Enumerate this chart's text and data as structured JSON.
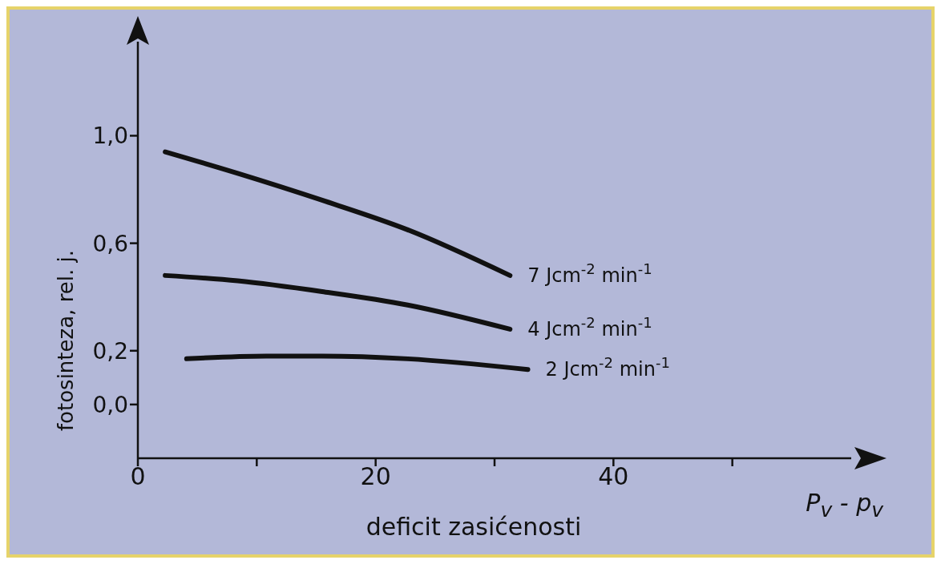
{
  "chart_data": {
    "type": "line",
    "xlabel": "deficit zasićenosti",
    "ylabel": "fotosinteza, rel. j.",
    "annotations": [
      "P$_{v}$ - p$_{v}$"
    ],
    "xlim": [
      0,
      60
    ],
    "ylim": [
      -0.2,
      1.35
    ],
    "xticks": [
      0,
      {
        "value": 10,
        "label": null
      },
      20,
      {
        "value": 30,
        "label": null
      },
      40,
      {
        "value": 50,
        "label": null
      }
    ],
    "yticks": [
      {
        "value": 0,
        "label": "0,0"
      },
      {
        "value": 0.2,
        "label": "0,2"
      },
      {
        "value": 0.6,
        "label": "0,6"
      },
      {
        "value": 1,
        "label": "1,0"
      }
    ],
    "grid": false,
    "legend": false,
    "marker": "none",
    "line_style": "solid",
    "series": [
      {
        "name": "7 Jcm$^{-2}$ min$^{-1}$",
        "color": "#111111",
        "x": [
          2.3,
          8.4,
          15.5,
          22.7,
          31.3
        ],
        "values": [
          0.94,
          0.86,
          0.76,
          0.65,
          0.48
        ]
      },
      {
        "name": "4 Jcm$^{-2}$ min$^{-1}$",
        "color": "#111111",
        "x": [
          2.3,
          8.4,
          15.5,
          22.7,
          31.3
        ],
        "values": [
          0.48,
          0.46,
          0.42,
          0.37,
          0.28
        ]
      },
      {
        "name": "2 Jcm$^{-2}$ min$^{-1}$",
        "color": "#111111",
        "x": [
          4.1,
          10.8,
          15.5,
          22.7,
          32.8
        ],
        "values": [
          0.17,
          0.18,
          0.18,
          0.17,
          0.13
        ]
      }
    ]
  }
}
